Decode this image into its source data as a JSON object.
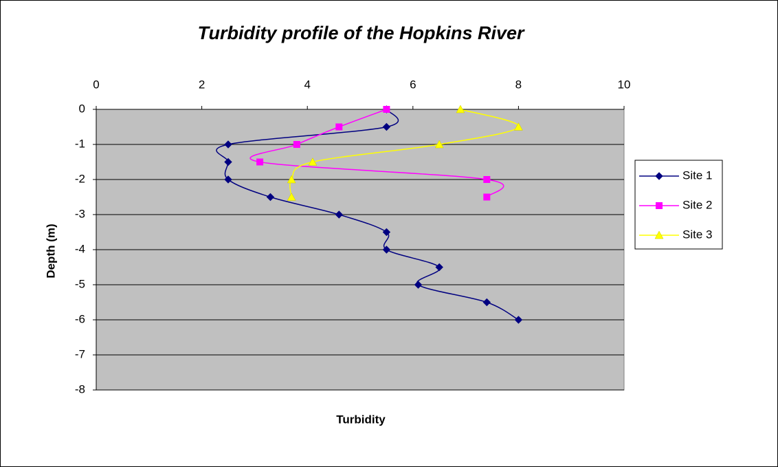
{
  "chart_data": {
    "type": "scatter",
    "title": "Turbidity profile of the Hopkins River",
    "x_label": "Turbidity",
    "y_label": "Depth (m)",
    "xlim": [
      0,
      10
    ],
    "xticks": [
      0,
      2,
      4,
      6,
      8,
      10
    ],
    "ylim": [
      -8,
      0
    ],
    "yticks": [
      0,
      -1,
      -2,
      -3,
      -4,
      -5,
      -6,
      -7,
      -8
    ],
    "grid": true,
    "smooth": true,
    "legend": "right",
    "series": [
      {
        "name": "Site 1",
        "color": "#000080",
        "marker": "diamond",
        "x": [
          5.5,
          5.5,
          2.5,
          2.5,
          2.5,
          3.3,
          4.6,
          5.5,
          5.5,
          6.5,
          6.1,
          7.4,
          8.0
        ],
        "values": [
          0,
          -0.5,
          -1,
          -1.5,
          -2,
          -2.5,
          -3,
          -3.5,
          -4,
          -4.5,
          -5,
          -5.5,
          -6
        ]
      },
      {
        "name": "Site 2",
        "color": "#ff00ff",
        "marker": "square",
        "x": [
          5.5,
          4.6,
          3.8,
          3.1,
          7.4,
          7.4
        ],
        "values": [
          0,
          -0.5,
          -1,
          -1.5,
          -2,
          -2.5
        ]
      },
      {
        "name": "Site 3",
        "color": "#ffff00",
        "marker": "triangle",
        "x": [
          6.9,
          8.0,
          6.5,
          4.1,
          3.7,
          3.7
        ],
        "values": [
          0,
          -0.5,
          -1,
          -1.5,
          -2,
          -2.5
        ]
      }
    ]
  }
}
